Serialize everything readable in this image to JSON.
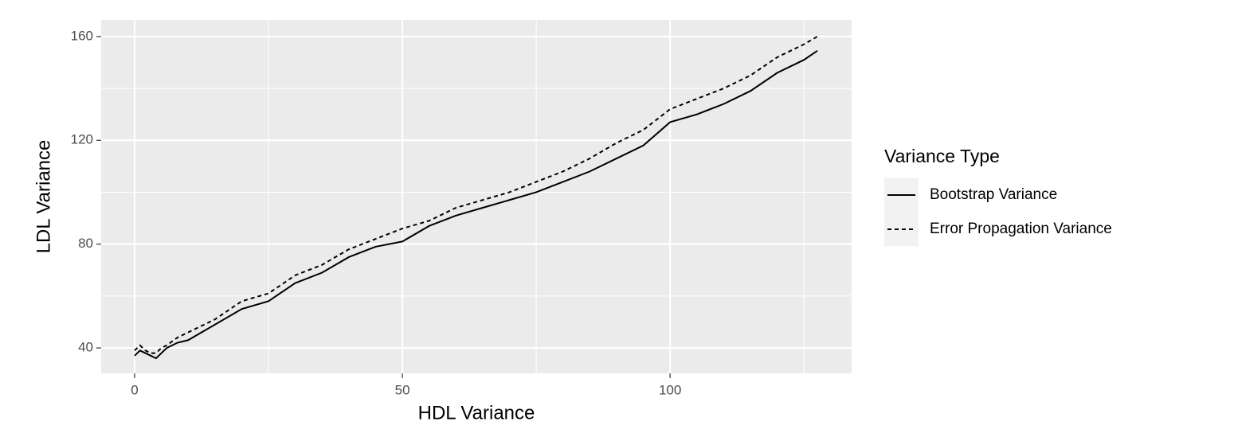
{
  "chart_data": {
    "type": "line",
    "x_label": "HDL Variance",
    "y_label": "LDL Variance",
    "legend_title": "Variance Type",
    "legend_position": "right",
    "grid": true,
    "xlim": [
      -6.25,
      133.9
    ],
    "ylim": [
      30.2,
      166.4
    ],
    "xticks": [
      0,
      50,
      100
    ],
    "yticks": [
      40,
      80,
      120,
      160
    ],
    "xminor": [
      25,
      75,
      125
    ],
    "yminor": [
      60,
      100,
      140
    ],
    "x": [
      0,
      1,
      2,
      3,
      4,
      5,
      6,
      8,
      10,
      15,
      20,
      25,
      30,
      35,
      40,
      45,
      50,
      55,
      60,
      65,
      70,
      75,
      80,
      85,
      90,
      95,
      100,
      105,
      110,
      115,
      120,
      125,
      127.5
    ],
    "series": [
      {
        "name": "Bootstrap Variance",
        "color": "#000000",
        "linetype": "solid",
        "values": [
          37,
          39,
          38,
          37,
          36,
          38,
          40,
          42,
          43,
          49,
          55,
          58,
          65,
          69,
          75,
          79,
          81,
          87,
          91,
          94,
          97,
          100,
          104,
          108,
          113,
          118,
          127,
          130,
          134,
          139,
          146,
          151,
          154.5
        ]
      },
      {
        "name": "Error Propagation Variance",
        "color": "#000000",
        "linetype": "dashed",
        "values": [
          39,
          41,
          39,
          38,
          38,
          40,
          41,
          44,
          46,
          51,
          58,
          61,
          68,
          72,
          78,
          82,
          86,
          89,
          94,
          97,
          100,
          104,
          108,
          113,
          119,
          124,
          132,
          136,
          140,
          145,
          152,
          157,
          160
        ]
      }
    ]
  }
}
